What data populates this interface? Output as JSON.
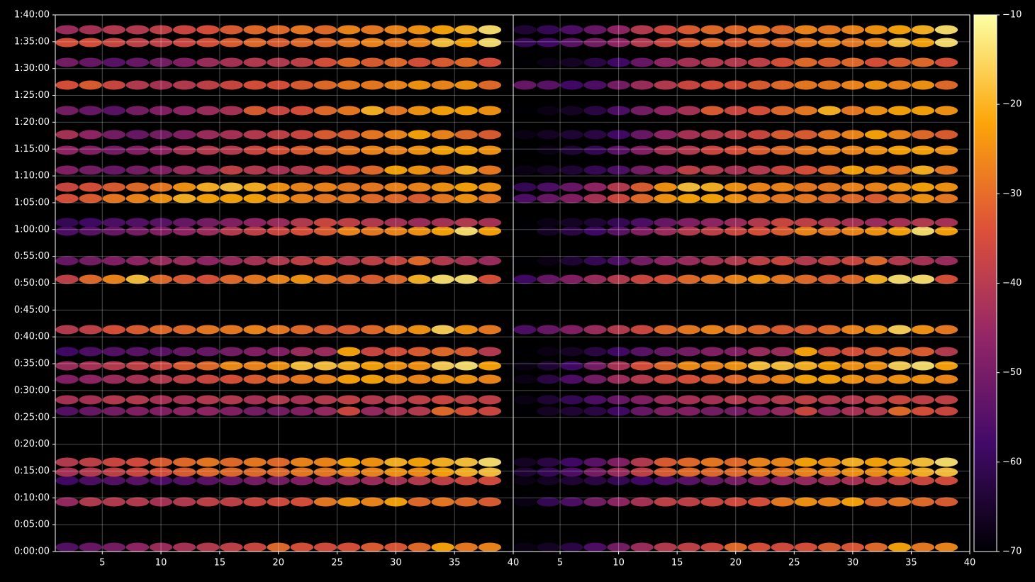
{
  "chart_data": [
    {
      "type": "heatmap",
      "colormap": [
        "#000004",
        "#420a68",
        "#932667",
        "#dd513a",
        "#fca50a",
        "#fcffa4"
      ],
      "vlim": [
        -70,
        -10
      ],
      "grid": true,
      "xlim": [
        1,
        40
      ],
      "xticks": [
        5,
        10,
        15,
        20,
        25,
        30,
        35,
        40
      ],
      "ylim": [
        0,
        6000
      ],
      "yticks": [
        {
          "value": 0,
          "label": "0:00:00"
        },
        {
          "value": 300,
          "label": "0:05:00"
        },
        {
          "value": 600,
          "label": "0:10:00"
        },
        {
          "value": 900,
          "label": "0:15:00"
        },
        {
          "value": 1200,
          "label": "0:20:00"
        },
        {
          "value": 1500,
          "label": "0:25:00"
        },
        {
          "value": 1800,
          "label": "0:30:00"
        },
        {
          "value": 2100,
          "label": "0:35:00"
        },
        {
          "value": 2400,
          "label": "0:40:00"
        },
        {
          "value": 2700,
          "label": "0:45:00"
        },
        {
          "value": 3000,
          "label": "0:50:00"
        },
        {
          "value": 3300,
          "label": "0:55:00"
        },
        {
          "value": 3600,
          "label": "1:00:00"
        },
        {
          "value": 3900,
          "label": "1:05:00"
        },
        {
          "value": 4200,
          "label": "1:10:00"
        },
        {
          "value": 4500,
          "label": "1:15:00"
        },
        {
          "value": 4800,
          "label": "1:20:00"
        },
        {
          "value": 5100,
          "label": "1:25:00"
        },
        {
          "value": 5400,
          "label": "1:30:00"
        },
        {
          "value": 5700,
          "label": "1:35:00"
        },
        {
          "value": 6000,
          "label": "1:40:00"
        }
      ],
      "x": [
        2,
        4,
        6,
        8,
        10,
        12,
        14,
        16,
        18,
        20,
        22,
        24,
        26,
        28,
        30,
        32,
        34,
        36,
        38
      ],
      "y": [
        48,
        555,
        793,
        888,
        999,
        1569,
        1696,
        1926,
        2077,
        2235,
        2481,
        3044,
        3250,
        3583,
        3678,
        3947,
        4074,
        4264,
        4486,
        4661,
        4930,
        5215,
        5469,
        5691,
        5834
      ],
      "values": [
        [
          -55,
          -52,
          -50,
          -46,
          -44,
          -42,
          -40,
          -38,
          -36,
          -30,
          -34,
          -35,
          -34,
          -32,
          -33,
          -30,
          -22,
          -28,
          -26
        ],
        [
          -45,
          -40,
          -40,
          -40,
          -42,
          -40,
          -38,
          -38,
          -36,
          -35,
          -34,
          -28,
          -24,
          -26,
          -22,
          -30,
          -28,
          -30,
          -32
        ],
        [
          -58,
          -56,
          -55,
          -54,
          -56,
          -55,
          -54,
          -52,
          -50,
          -50,
          -48,
          -46,
          -45,
          -44,
          -42,
          -40,
          -38,
          -36,
          -35
        ],
        [
          -42,
          -40,
          -38,
          -36,
          -34,
          -32,
          -30,
          -30,
          -30,
          -30,
          -28,
          -28,
          -26,
          -26,
          -24,
          -25,
          -22,
          -20,
          -18
        ],
        [
          -40,
          -38,
          -36,
          -35,
          -32,
          -30,
          -28,
          -30,
          -28,
          -30,
          -26,
          -26,
          -22,
          -24,
          -20,
          -22,
          -20,
          -18,
          -14
        ],
        [
          -55,
          -52,
          -50,
          -48,
          -48,
          -46,
          -46,
          -48,
          -50,
          -50,
          -48,
          -45,
          -36,
          -45,
          -42,
          -40,
          -30,
          -34,
          -36
        ],
        [
          -42,
          -42,
          -40,
          -40,
          -42,
          -42,
          -40,
          -40,
          -42,
          -40,
          -42,
          -40,
          -38,
          -40,
          -40,
          -38,
          -36,
          -38,
          -38
        ],
        [
          -48,
          -46,
          -44,
          -42,
          -40,
          -38,
          -36,
          -34,
          -32,
          -30,
          -28,
          -26,
          -22,
          -22,
          -24,
          -26,
          -24,
          -24,
          -26
        ],
        [
          -44,
          -42,
          -40,
          -38,
          -36,
          -32,
          -30,
          -25,
          -26,
          -24,
          -18,
          -18,
          -20,
          -22,
          -24,
          -24,
          -16,
          -14,
          -22
        ],
        [
          -58,
          -56,
          -55,
          -54,
          -54,
          -52,
          -52,
          -50,
          -48,
          -48,
          -44,
          -44,
          -22,
          -36,
          -34,
          -32,
          -30,
          -32,
          -40
        ],
        [
          -40,
          -38,
          -34,
          -32,
          -30,
          -30,
          -28,
          -28,
          -26,
          -28,
          -30,
          -32,
          -32,
          -30,
          -26,
          -24,
          -16,
          -24,
          -28
        ],
        [
          -38,
          -30,
          -26,
          -18,
          -30,
          -32,
          -34,
          -30,
          -28,
          -26,
          -24,
          -28,
          -30,
          -32,
          -30,
          -20,
          -14,
          -14,
          -34
        ],
        [
          -52,
          -50,
          -48,
          -46,
          -44,
          -44,
          -46,
          -44,
          -42,
          -40,
          -38,
          -36,
          -40,
          -38,
          -36,
          -30,
          -40,
          -42,
          -44
        ],
        [
          -56,
          -54,
          -52,
          -50,
          -48,
          -46,
          -44,
          -40,
          -38,
          -36,
          -34,
          -32,
          -26,
          -28,
          -26,
          -24,
          -22,
          -14,
          -22
        ],
        [
          -60,
          -58,
          -56,
          -55,
          -54,
          -52,
          -50,
          -48,
          -46,
          -44,
          -40,
          -36,
          -38,
          -40,
          -42,
          -44,
          -42,
          -40,
          -42
        ],
        [
          -34,
          -32,
          -28,
          -26,
          -24,
          -20,
          -22,
          -22,
          -22,
          -24,
          -26,
          -28,
          -28,
          -30,
          -30,
          -32,
          -28,
          -24,
          -28
        ],
        [
          -36,
          -34,
          -32,
          -30,
          -28,
          -24,
          -20,
          -18,
          -20,
          -24,
          -26,
          -26,
          -28,
          -28,
          -26,
          -26,
          -24,
          -22,
          -24
        ],
        [
          -48,
          -50,
          -52,
          -50,
          -48,
          -44,
          -44,
          -38,
          -40,
          -42,
          -40,
          -36,
          -34,
          -30,
          -22,
          -24,
          -28,
          -20,
          -28
        ],
        [
          -46,
          -48,
          -50,
          -48,
          -46,
          -42,
          -40,
          -40,
          -36,
          -34,
          -32,
          -30,
          -28,
          -26,
          -26,
          -24,
          -22,
          -22,
          -24
        ],
        [
          -42,
          -46,
          -50,
          -52,
          -50,
          -48,
          -44,
          -42,
          -40,
          -38,
          -36,
          -32,
          -32,
          -28,
          -26,
          -22,
          -26,
          -30,
          -32
        ],
        [
          -50,
          -52,
          -54,
          -50,
          -48,
          -46,
          -44,
          -42,
          -32,
          -36,
          -34,
          -30,
          -28,
          -20,
          -28,
          -24,
          -22,
          -22,
          -24
        ],
        [
          -34,
          -32,
          -36,
          -40,
          -42,
          -40,
          -38,
          -36,
          -34,
          -34,
          -32,
          -30,
          -28,
          -28,
          -26,
          -24,
          -26,
          -24,
          -30
        ],
        [
          -50,
          -52,
          -54,
          -52,
          -50,
          -48,
          -44,
          -42,
          -40,
          -40,
          -38,
          -34,
          -30,
          -32,
          -30,
          -34,
          -32,
          -30,
          -34
        ],
        [
          -34,
          -34,
          -36,
          -38,
          -38,
          -36,
          -34,
          -32,
          -30,
          -32,
          -30,
          -30,
          -28,
          -26,
          -28,
          -26,
          -18,
          -22,
          -14
        ],
        [
          -44,
          -42,
          -40,
          -40,
          -38,
          -36,
          -34,
          -32,
          -30,
          -30,
          -28,
          -30,
          -26,
          -28,
          -26,
          -24,
          -22,
          -20,
          -14
        ]
      ]
    },
    {
      "type": "heatmap",
      "colormap": [
        "#000004",
        "#420a68",
        "#932667",
        "#dd513a",
        "#fca50a",
        "#fcffa4"
      ],
      "vlim": [
        -70,
        -10
      ],
      "grid": true,
      "xlim": [
        1,
        40
      ],
      "xticks": [
        5,
        10,
        15,
        20,
        25,
        30,
        35,
        40
      ],
      "ylim": [
        0,
        6000
      ],
      "x": [
        2,
        4,
        6,
        8,
        10,
        12,
        14,
        16,
        18,
        20,
        22,
        24,
        26,
        28,
        30,
        32,
        34,
        36,
        38
      ],
      "y": [
        48,
        555,
        793,
        888,
        999,
        1569,
        1696,
        1926,
        2077,
        2235,
        2481,
        3044,
        3250,
        3583,
        3678,
        3947,
        4074,
        4264,
        4486,
        4661,
        4930,
        5215,
        5469,
        5691,
        5834
      ],
      "values": [
        [
          -68,
          -66,
          -62,
          -56,
          -50,
          -44,
          -40,
          -38,
          -36,
          -30,
          -34,
          -35,
          -34,
          -32,
          -33,
          -30,
          -22,
          -28,
          -26
        ],
        [
          -68,
          -60,
          -56,
          -50,
          -46,
          -42,
          -38,
          -38,
          -36,
          -35,
          -34,
          -28,
          -24,
          -26,
          -22,
          -30,
          -28,
          -30,
          -32
        ],
        [
          -68,
          -66,
          -64,
          -62,
          -60,
          -58,
          -56,
          -54,
          -52,
          -50,
          -48,
          -46,
          -45,
          -44,
          -42,
          -40,
          -38,
          -36,
          -35
        ],
        [
          -64,
          -60,
          -56,
          -50,
          -44,
          -38,
          -32,
          -30,
          -30,
          -30,
          -28,
          -28,
          -26,
          -26,
          -24,
          -25,
          -22,
          -20,
          -18
        ],
        [
          -66,
          -62,
          -58,
          -54,
          -48,
          -40,
          -32,
          -30,
          -28,
          -30,
          -26,
          -26,
          -22,
          -24,
          -20,
          -22,
          -20,
          -18,
          -14
        ],
        [
          -70,
          -66,
          -64,
          -62,
          -58,
          -52,
          -48,
          -48,
          -50,
          -50,
          -48,
          -45,
          -36,
          -45,
          -42,
          -40,
          -30,
          -34,
          -36
        ],
        [
          -68,
          -64,
          -60,
          -56,
          -52,
          -48,
          -44,
          -42,
          -42,
          -40,
          -42,
          -40,
          -38,
          -40,
          -40,
          -38,
          -36,
          -38,
          -38
        ],
        [
          -68,
          -62,
          -56,
          -50,
          -44,
          -40,
          -36,
          -34,
          -32,
          -30,
          -28,
          -26,
          -22,
          -22,
          -24,
          -26,
          -24,
          -24,
          -26
        ],
        [
          -68,
          -64,
          -58,
          -50,
          -42,
          -34,
          -30,
          -25,
          -26,
          -24,
          -18,
          -18,
          -20,
          -22,
          -24,
          -24,
          -16,
          -14,
          -22
        ],
        [
          -70,
          -68,
          -66,
          -62,
          -58,
          -54,
          -52,
          -50,
          -48,
          -48,
          -44,
          -44,
          -22,
          -36,
          -34,
          -32,
          -30,
          -32,
          -40
        ],
        [
          -56,
          -52,
          -48,
          -44,
          -40,
          -36,
          -30,
          -28,
          -26,
          -28,
          -30,
          -32,
          -32,
          -30,
          -26,
          -24,
          -16,
          -24,
          -28
        ],
        [
          -58,
          -52,
          -48,
          -44,
          -40,
          -36,
          -34,
          -30,
          -28,
          -26,
          -24,
          -28,
          -30,
          -32,
          -30,
          -20,
          -14,
          -14,
          -34
        ],
        [
          -70,
          -68,
          -64,
          -60,
          -56,
          -50,
          -46,
          -44,
          -42,
          -40,
          -38,
          -36,
          -40,
          -38,
          -36,
          -30,
          -40,
          -42,
          -44
        ],
        [
          -70,
          -66,
          -62,
          -58,
          -54,
          -48,
          -44,
          -40,
          -38,
          -36,
          -34,
          -32,
          -26,
          -28,
          -26,
          -24,
          -22,
          -14,
          -22
        ],
        [
          -70,
          -68,
          -66,
          -64,
          -60,
          -56,
          -52,
          -48,
          -46,
          -44,
          -40,
          -36,
          -38,
          -40,
          -42,
          -44,
          -42,
          -40,
          -42
        ],
        [
          -56,
          -52,
          -48,
          -42,
          -36,
          -30,
          -24,
          -22,
          -22,
          -24,
          -26,
          -28,
          -28,
          -30,
          -30,
          -32,
          -28,
          -24,
          -28
        ],
        [
          -60,
          -56,
          -52,
          -46,
          -40,
          -32,
          -24,
          -18,
          -20,
          -24,
          -26,
          -26,
          -28,
          -28,
          -26,
          -26,
          -24,
          -22,
          -24
        ],
        [
          -68,
          -66,
          -64,
          -60,
          -56,
          -50,
          -46,
          -38,
          -40,
          -42,
          -40,
          -36,
          -34,
          -30,
          -22,
          -24,
          -28,
          -20,
          -28
        ],
        [
          -70,
          -68,
          -64,
          -60,
          -54,
          -48,
          -42,
          -40,
          -36,
          -34,
          -32,
          -30,
          -28,
          -26,
          -26,
          -24,
          -22,
          -22,
          -24
        ],
        [
          -68,
          -66,
          -64,
          -62,
          -58,
          -52,
          -46,
          -42,
          -40,
          -38,
          -36,
          -32,
          -32,
          -28,
          -26,
          -22,
          -26,
          -30,
          -32
        ],
        [
          -70,
          -68,
          -66,
          -62,
          -56,
          -50,
          -46,
          -42,
          -32,
          -36,
          -34,
          -30,
          -28,
          -20,
          -28,
          -24,
          -22,
          -22,
          -24
        ],
        [
          -52,
          -54,
          -58,
          -56,
          -50,
          -44,
          -40,
          -36,
          -34,
          -34,
          -32,
          -30,
          -28,
          -28,
          -26,
          -24,
          -26,
          -24,
          -30
        ],
        [
          -70,
          -68,
          -66,
          -62,
          -58,
          -52,
          -46,
          -42,
          -40,
          -40,
          -38,
          -34,
          -30,
          -32,
          -30,
          -34,
          -32,
          -30,
          -34
        ],
        [
          -60,
          -58,
          -54,
          -50,
          -46,
          -40,
          -36,
          -32,
          -30,
          -32,
          -30,
          -30,
          -28,
          -26,
          -28,
          -26,
          -18,
          -22,
          -14
        ],
        [
          -64,
          -60,
          -56,
          -52,
          -46,
          -40,
          -36,
          -32,
          -30,
          -30,
          -28,
          -30,
          -26,
          -28,
          -26,
          -24,
          -22,
          -20,
          -14
        ]
      ]
    }
  ],
  "colorbar": {
    "lim": [
      -70,
      -10
    ],
    "ticks": [
      {
        "value": -70,
        "label": "−70"
      },
      {
        "value": -60,
        "label": "−60"
      },
      {
        "value": -50,
        "label": "−50"
      },
      {
        "value": -40,
        "label": "−40"
      },
      {
        "value": -30,
        "label": "−30"
      },
      {
        "value": -20,
        "label": "−20"
      },
      {
        "value": -10,
        "label": "−10"
      }
    ]
  }
}
